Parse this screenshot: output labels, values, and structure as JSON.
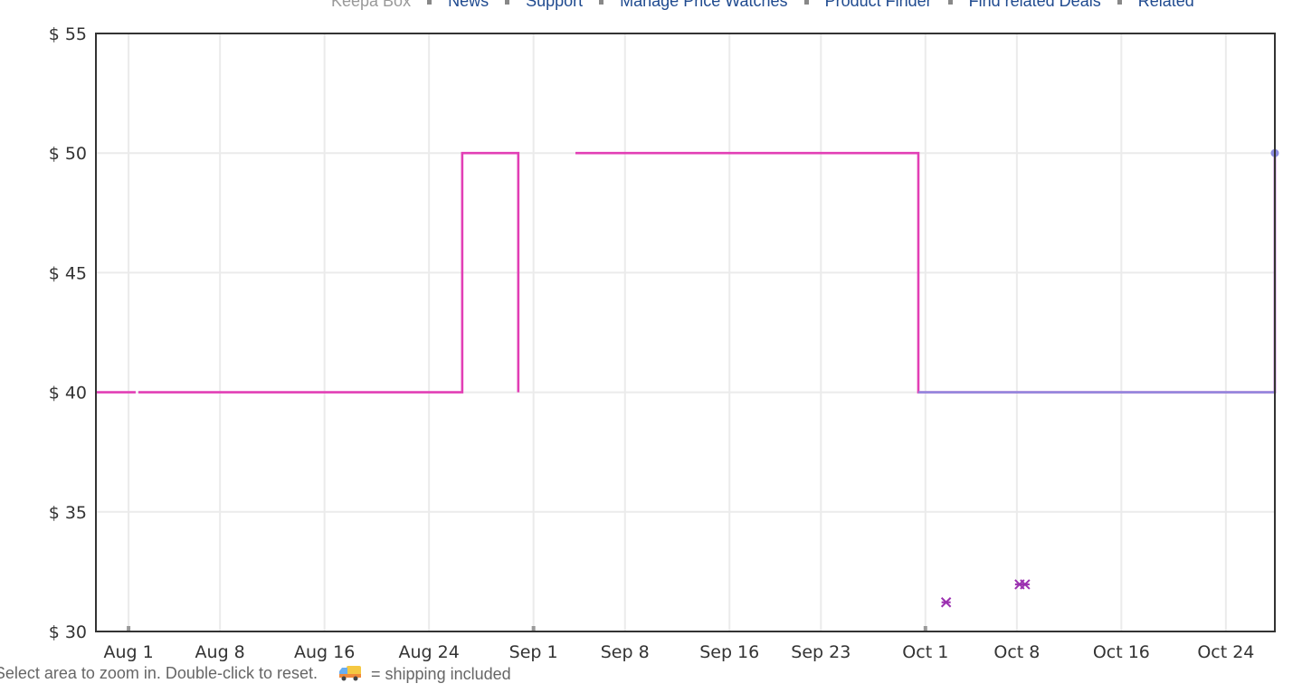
{
  "nav": {
    "items": [
      "Keepa Box",
      "News",
      "Support",
      "Manage Price Watches",
      "Product Finder",
      "Find related Deals",
      "Related"
    ]
  },
  "footer": {
    "hint": "Select area to zoom in. Double-click to reset.",
    "shipping_icon": "delivery-truck-icon",
    "shipping_text": "= shipping included"
  },
  "chart_data": {
    "type": "line",
    "step": true,
    "title": "",
    "xlabel": "",
    "ylabel": "",
    "ylim": [
      30,
      55
    ],
    "xlim": [
      "07-29 12",
      "10-27 18"
    ],
    "grid": true,
    "yticks": [
      30,
      35,
      40,
      45,
      50,
      55
    ],
    "ytick_labels": [
      "$ 30",
      "$ 35",
      "$ 40",
      "$ 45",
      "$ 50",
      "$ 55"
    ],
    "xticks": [
      "08-01",
      "08-08",
      "08-16",
      "08-24",
      "09-01",
      "09-08",
      "09-16",
      "09-23",
      "10-01",
      "10-08",
      "10-16",
      "10-24"
    ],
    "xtick_labels": [
      "Aug 1",
      "Aug 8",
      "Aug 16",
      "Aug 24",
      "Sep 1",
      "Sep 8",
      "Sep 16",
      "Sep 23",
      "Oct 1",
      "Oct 8",
      "Oct 16",
      "Oct 24"
    ],
    "series": [
      {
        "color": "#e23fb5",
        "segments": [
          [
            [
              "07-29 12",
              40
            ],
            [
              "08-01 13",
              40
            ]
          ],
          [
            [
              "08-01 18",
              40
            ],
            [
              "08-05 14",
              40
            ],
            [
              "08-26 13",
              50
            ],
            [
              "08-30 20",
              40
            ]
          ],
          [
            [
              "09-04 05",
              50
            ],
            [
              "09-23 18",
              50
            ],
            [
              "09-30 11",
              40
            ],
            [
              "10-27 18",
              50
            ]
          ]
        ]
      },
      {
        "color": "#8c8ce0",
        "segments": [
          [
            [
              "09-30 11",
              40
            ],
            [
              "09-30 21",
              40
            ],
            [
              "10-27 18",
              50
            ]
          ]
        ],
        "end_marker": true
      },
      {
        "color": "#9b30b0",
        "marker": "x",
        "points": [
          [
            "10-02 14",
            31.22
          ],
          [
            "10-08 05",
            31.97
          ],
          [
            "10-08 15",
            31.97
          ]
        ]
      }
    ]
  }
}
